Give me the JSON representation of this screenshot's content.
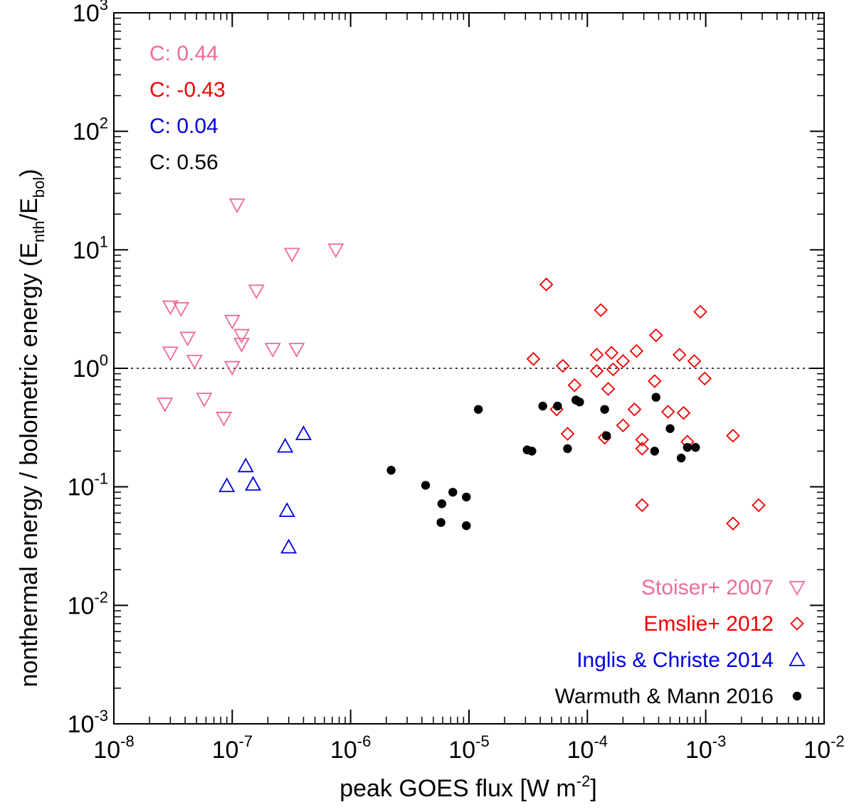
{
  "chart_data": {
    "type": "scatter",
    "xscale": "log",
    "yscale": "log",
    "xlim": [
      1e-08,
      0.01
    ],
    "ylim": [
      0.001,
      1000.0
    ],
    "x_ticks": [
      {
        "base": "10",
        "exp": "-8",
        "value": 1e-08
      },
      {
        "base": "10",
        "exp": "-7",
        "value": 1e-07
      },
      {
        "base": "10",
        "exp": "-6",
        "value": 1e-06
      },
      {
        "base": "10",
        "exp": "-5",
        "value": 1e-05
      },
      {
        "base": "10",
        "exp": "-4",
        "value": 0.0001
      },
      {
        "base": "10",
        "exp": "-3",
        "value": 0.001
      },
      {
        "base": "10",
        "exp": "-2",
        "value": 0.01
      }
    ],
    "y_ticks": [
      {
        "base": "10",
        "exp": "-3",
        "value": 0.001
      },
      {
        "base": "10",
        "exp": "-2",
        "value": 0.01
      },
      {
        "base": "10",
        "exp": "-1",
        "value": 0.1
      },
      {
        "base": "10",
        "exp": "0",
        "value": 1
      },
      {
        "base": "10",
        "exp": "1",
        "value": 10
      },
      {
        "base": "10",
        "exp": "2",
        "value": 100
      },
      {
        "base": "10",
        "exp": "3",
        "value": 1000
      }
    ],
    "xlabel": {
      "main": "peak GOES flux [W m",
      "sup": "-2",
      "end": "]"
    },
    "ylabel": {
      "main": "nonthermal energy / bolometric energy (E",
      "sub1": "nth",
      "mid": "/E",
      "sub2": "bol",
      "end": ")"
    },
    "reference_line_y": 1.0,
    "correlations": [
      {
        "text": "C: 0.44",
        "color": "#f06a9b"
      },
      {
        "text": "C: -0.43",
        "color": "#ee0000"
      },
      {
        "text": "C: 0.04",
        "color": "#0000dd"
      },
      {
        "text": "C: 0.56",
        "color": "#000000"
      }
    ],
    "legend_position": "bottom-right",
    "series": [
      {
        "name": "Stoiser+ 2007",
        "color": "#f06a9b",
        "marker": "triangle-down",
        "points": [
          [
            1.1e-07,
            24
          ],
          [
            3.2e-07,
            9.2
          ],
          [
            7.5e-07,
            10
          ],
          [
            1.6e-07,
            4.5
          ],
          [
            3e-08,
            3.3
          ],
          [
            3.7e-08,
            3.2
          ],
          [
            1e-07,
            2.5
          ],
          [
            4.2e-08,
            1.8
          ],
          [
            1.2e-07,
            1.9
          ],
          [
            1.2e-07,
            1.6
          ],
          [
            3e-08,
            1.35
          ],
          [
            2.2e-07,
            1.45
          ],
          [
            3.5e-07,
            1.45
          ],
          [
            4.8e-08,
            1.15
          ],
          [
            1e-07,
            1.02
          ],
          [
            2.7e-08,
            0.5
          ],
          [
            5.8e-08,
            0.55
          ],
          [
            8.5e-08,
            0.38
          ]
        ]
      },
      {
        "name": "Emslie+ 2012",
        "color": "#ee0000",
        "marker": "diamond",
        "points": [
          [
            4.5e-05,
            5.1
          ],
          [
            0.00013,
            3.1
          ],
          [
            0.0009,
            3.0
          ],
          [
            0.00038,
            1.9
          ],
          [
            3.5e-05,
            1.2
          ],
          [
            6.2e-05,
            1.05
          ],
          [
            0.00012,
            1.3
          ],
          [
            0.00016,
            1.35
          ],
          [
            0.00026,
            1.4
          ],
          [
            0.0006,
            1.3
          ],
          [
            0.0008,
            1.15
          ],
          [
            0.0002,
            1.15
          ],
          [
            0.000165,
            0.98
          ],
          [
            0.00012,
            0.95
          ],
          [
            0.00098,
            0.82
          ],
          [
            7.8e-05,
            0.72
          ],
          [
            0.00015,
            0.67
          ],
          [
            0.00037,
            0.78
          ],
          [
            5.5e-05,
            0.45
          ],
          [
            0.00025,
            0.45
          ],
          [
            0.00048,
            0.43
          ],
          [
            0.00065,
            0.42
          ],
          [
            0.0002,
            0.33
          ],
          [
            6.8e-05,
            0.28
          ],
          [
            0.00014,
            0.26
          ],
          [
            0.00029,
            0.25
          ],
          [
            0.0007,
            0.24
          ],
          [
            0.0017,
            0.27
          ],
          [
            0.00029,
            0.21
          ],
          [
            0.00029,
            0.07
          ],
          [
            0.0028,
            0.07
          ],
          [
            0.0017,
            0.049
          ]
        ]
      },
      {
        "name": "Inglis & Christe 2014",
        "color": "#0000dd",
        "marker": "triangle-up",
        "points": [
          [
            4e-07,
            0.28
          ],
          [
            2.8e-07,
            0.22
          ],
          [
            1.3e-07,
            0.15
          ],
          [
            9e-08,
            0.102
          ],
          [
            1.5e-07,
            0.105
          ],
          [
            2.9e-07,
            0.063
          ],
          [
            3e-07,
            0.031
          ]
        ]
      },
      {
        "name": "Warmuth & Mann 2016",
        "color": "#000000",
        "marker": "circle",
        "points": [
          [
            1.2e-05,
            0.45
          ],
          [
            4.2e-05,
            0.48
          ],
          [
            5.6e-05,
            0.48
          ],
          [
            8e-05,
            0.54
          ],
          [
            8.6e-05,
            0.52
          ],
          [
            0.00014,
            0.45
          ],
          [
            0.00038,
            0.57
          ],
          [
            0.0005,
            0.31
          ],
          [
            0.000145,
            0.27
          ],
          [
            6.8e-05,
            0.21
          ],
          [
            3.1e-05,
            0.205
          ],
          [
            3.4e-05,
            0.2
          ],
          [
            0.00037,
            0.2
          ],
          [
            0.0007,
            0.215
          ],
          [
            0.00082,
            0.215
          ],
          [
            0.00062,
            0.175
          ],
          [
            2.2e-06,
            0.138
          ],
          [
            4.3e-06,
            0.103
          ],
          [
            7.3e-06,
            0.09
          ],
          [
            9.5e-06,
            0.082
          ],
          [
            5.9e-06,
            0.072
          ],
          [
            5.8e-06,
            0.05
          ],
          [
            9.5e-06,
            0.047
          ]
        ]
      }
    ]
  }
}
